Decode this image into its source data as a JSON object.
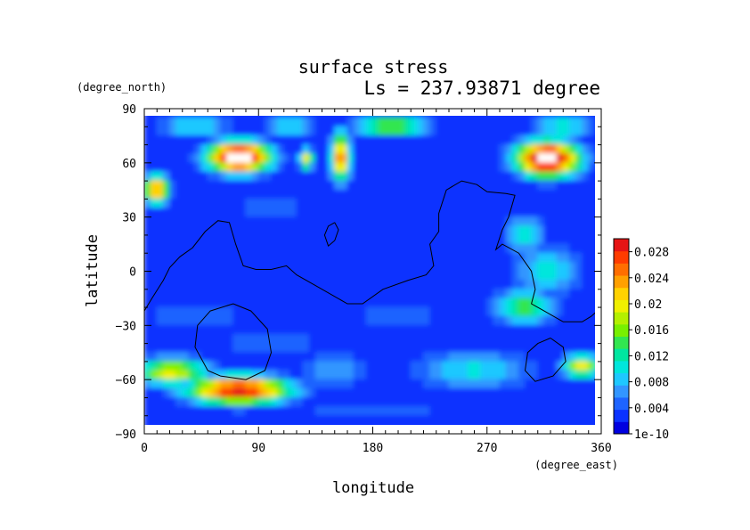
{
  "chart_data": {
    "type": "heatmap",
    "title": "surface stress",
    "subtitle": "Ls = 237.93871 degree",
    "xlabel": "longitude",
    "ylabel": "latitude",
    "x_units": "(degree_east)",
    "y_units": "(degree_north)",
    "xlim": [
      0,
      360
    ],
    "ylim": [
      -90,
      90
    ],
    "x_ticks": [
      "0",
      "90",
      "180",
      "270",
      "360"
    ],
    "y_ticks": [
      "90",
      "60",
      "30",
      "0",
      "−30",
      "−60",
      "−90"
    ],
    "x_tick_values": [
      0,
      90,
      180,
      270,
      360
    ],
    "y_tick_values": [
      90,
      60,
      30,
      0,
      -30,
      -60,
      -90
    ],
    "colorbar": {
      "labels": [
        "0.028",
        "0.024",
        "0.02",
        "0.016",
        "0.012",
        "0.008",
        "0.004",
        "1e-10"
      ],
      "values": [
        0.028,
        0.024,
        0.02,
        0.016,
        0.012,
        0.008,
        0.004,
        0
      ],
      "max": 0.03,
      "colors": [
        "#0000e0",
        "#0a32ff",
        "#1e64ff",
        "#3296ff",
        "#1ec8ff",
        "#00e6dc",
        "#00e6a0",
        "#32e650",
        "#78f000",
        "#b4f000",
        "#f0f000",
        "#ffd200",
        "#ffa000",
        "#ff6e00",
        "#ff3c00",
        "#e61414"
      ]
    },
    "background_value": 0.003,
    "features": [
      {
        "lon": 75,
        "lat": 63,
        "rlon": 26,
        "rlat": 9,
        "value": 0.034
      },
      {
        "lon": 318,
        "lat": 62,
        "rlon": 26,
        "rlat": 10,
        "value": 0.034
      },
      {
        "lon": 10,
        "lat": 45,
        "rlon": 10,
        "rlat": 8,
        "value": 0.026
      },
      {
        "lon": 155,
        "lat": 63,
        "rlon": 8,
        "rlat": 14,
        "value": 0.025
      },
      {
        "lon": 128,
        "lat": 62,
        "rlon": 6,
        "rlat": 6,
        "value": 0.02
      },
      {
        "lon": 195,
        "lat": 80,
        "rlon": 32,
        "rlat": 5,
        "value": 0.018
      },
      {
        "lon": 330,
        "lat": 80,
        "rlon": 24,
        "rlat": 5,
        "value": 0.013
      },
      {
        "lon": 40,
        "lat": 80,
        "rlon": 30,
        "rlat": 5,
        "value": 0.012
      },
      {
        "lon": 115,
        "lat": 80,
        "rlon": 22,
        "rlat": 5,
        "value": 0.011
      },
      {
        "lon": 75,
        "lat": -66,
        "rlon": 42,
        "rlat": 8,
        "value": 0.03
      },
      {
        "lon": 22,
        "lat": -56,
        "rlon": 30,
        "rlat": 8,
        "value": 0.02
      },
      {
        "lon": 345,
        "lat": -53,
        "rlon": 16,
        "rlat": 7,
        "value": 0.02
      },
      {
        "lon": 300,
        "lat": -20,
        "rlon": 26,
        "rlat": 10,
        "value": 0.015
      },
      {
        "lon": 300,
        "lat": 20,
        "rlon": 16,
        "rlat": 12,
        "value": 0.011
      },
      {
        "lon": 318,
        "lat": 0,
        "rlon": 30,
        "rlat": 16,
        "value": 0.01
      },
      {
        "lon": 260,
        "lat": -55,
        "rlon": 50,
        "rlat": 12,
        "value": 0.01
      },
      {
        "lon": 150,
        "lat": -55,
        "rlon": 30,
        "rlat": 10,
        "value": 0.008
      },
      {
        "lon": 200,
        "lat": -25,
        "rlon": 40,
        "rlat": 9,
        "value": 0.006
      },
      {
        "lon": 40,
        "lat": -25,
        "rlon": 45,
        "rlat": 9,
        "value": 0.006
      },
      {
        "lon": 100,
        "lat": -40,
        "rlon": 60,
        "rlat": 10,
        "value": 0.005
      },
      {
        "lon": 180,
        "lat": -78,
        "rlon": 200,
        "rlat": 4,
        "value": 0.004
      },
      {
        "lon": 100,
        "lat": 35,
        "rlon": 40,
        "rlat": 12,
        "value": 0.005
      }
    ],
    "contours": [
      [
        [
          0,
          -22
        ],
        [
          6,
          -15
        ],
        [
          15,
          -5
        ],
        [
          20,
          2
        ],
        [
          28,
          8
        ],
        [
          38,
          13
        ],
        [
          48,
          22
        ],
        [
          58,
          28
        ],
        [
          67,
          27
        ],
        [
          72,
          15
        ],
        [
          78,
          3
        ],
        [
          88,
          1
        ],
        [
          100,
          1
        ],
        [
          112,
          3
        ],
        [
          120,
          -2
        ],
        [
          135,
          -8
        ],
        [
          160,
          -18
        ],
        [
          172,
          -18
        ],
        [
          188,
          -10
        ],
        [
          208,
          -5
        ],
        [
          222,
          -2
        ],
        [
          228,
          3
        ],
        [
          225,
          15
        ],
        [
          232,
          22
        ],
        [
          232,
          32
        ],
        [
          238,
          45
        ],
        [
          250,
          50
        ],
        [
          262,
          48
        ],
        [
          270,
          44
        ],
        [
          285,
          43
        ],
        [
          292,
          42
        ],
        [
          287,
          30
        ],
        [
          282,
          23
        ],
        [
          277,
          12
        ],
        [
          282,
          15
        ],
        [
          295,
          10
        ],
        [
          305,
          0
        ],
        [
          308,
          -10
        ],
        [
          305,
          -18
        ],
        [
          315,
          -22
        ],
        [
          330,
          -28
        ],
        [
          345,
          -28
        ],
        [
          352,
          -25
        ],
        [
          360,
          -20
        ]
      ],
      [
        [
          60,
          -58
        ],
        [
          50,
          -55
        ],
        [
          40,
          -42
        ],
        [
          42,
          -30
        ],
        [
          52,
          -22
        ],
        [
          70,
          -18
        ],
        [
          84,
          -22
        ],
        [
          97,
          -32
        ],
        [
          100,
          -45
        ],
        [
          95,
          -55
        ],
        [
          80,
          -60
        ],
        [
          60,
          -58
        ]
      ],
      [
        [
          150,
          27
        ],
        [
          145,
          25
        ],
        [
          142,
          20
        ],
        [
          145,
          14
        ],
        [
          150,
          17
        ],
        [
          153,
          23
        ],
        [
          150,
          27
        ]
      ],
      [
        [
          320,
          -37
        ],
        [
          310,
          -40
        ],
        [
          302,
          -45
        ],
        [
          300,
          -55
        ],
        [
          308,
          -61
        ],
        [
          322,
          -58
        ],
        [
          332,
          -50
        ],
        [
          330,
          -42
        ],
        [
          320,
          -37
        ]
      ]
    ]
  }
}
